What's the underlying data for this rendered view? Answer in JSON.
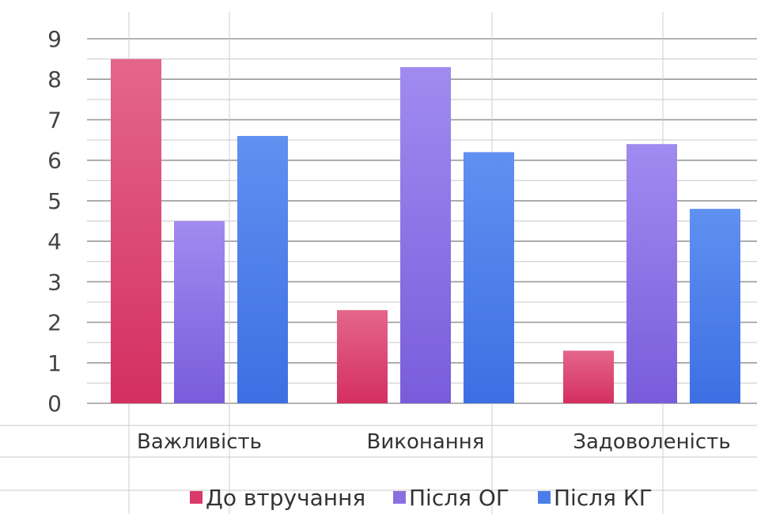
{
  "chart_data": {
    "type": "bar",
    "categories": [
      "Важливість",
      "Виконання",
      "Задоволеність"
    ],
    "series": [
      {
        "name": "До втручання",
        "values": [
          8.5,
          2.3,
          1.3
        ],
        "color": "#d93a6a"
      },
      {
        "name": "Після ОГ",
        "values": [
          4.5,
          8.3,
          6.4
        ],
        "color": "#8a6fe0"
      },
      {
        "name": "Після КГ",
        "values": [
          6.6,
          6.2,
          4.8
        ],
        "color": "#4a7ee8"
      }
    ],
    "ylim": [
      0,
      9
    ],
    "yticks": [
      "0",
      "1",
      "2",
      "3",
      "4",
      "5",
      "6",
      "7",
      "8",
      "9"
    ],
    "grid": true,
    "legend_position": "bottom"
  }
}
